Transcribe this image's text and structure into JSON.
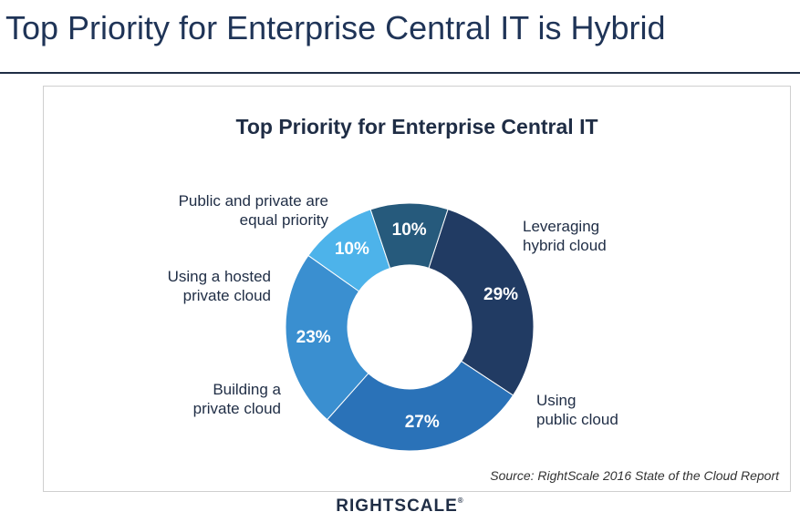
{
  "slide": {
    "title": "Top Priority for Enterprise Central IT is Hybrid"
  },
  "chart_data": {
    "type": "pie",
    "variant": "donut",
    "title": "Top Priority for Enterprise Central IT",
    "categories": [
      "Leveraging hybrid cloud",
      "Using public cloud",
      "Building a private cloud",
      "Using a hosted private cloud",
      "Public and private are equal priority"
    ],
    "values": [
      29,
      27,
      23,
      10,
      10
    ],
    "value_labels": [
      "29%",
      "27%",
      "23%",
      "10%",
      "10%"
    ],
    "colors": [
      "#213b63",
      "#2a72b8",
      "#3a8fd0",
      "#4db3ea",
      "#265a7c"
    ],
    "legend": "none",
    "source": "Source: RightScale 2016 State of the Cloud Report"
  },
  "labels": {
    "hybrid": [
      "Leveraging",
      "hybrid cloud"
    ],
    "public": [
      "Using",
      "public cloud"
    ],
    "private": [
      "Building a",
      "private cloud"
    ],
    "hosted": [
      "Using a hosted",
      "private cloud"
    ],
    "equal": [
      "Public and private are",
      "equal priority"
    ]
  },
  "logo": {
    "text": "RIGHTSCALE",
    "mark": "®"
  }
}
